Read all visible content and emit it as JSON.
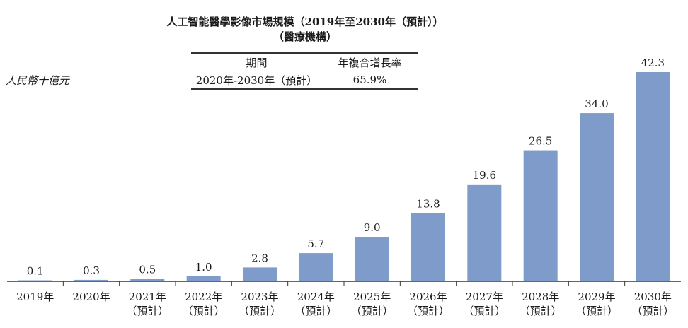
{
  "title": "人工智能醫學影像市場規模（2019年至2030年（預計））",
  "subtitle": "（醫療機構）",
  "unit_label": "人民幣十億元",
  "cagr_table": {
    "headers": [
      "期間",
      "年複合增長率"
    ],
    "rows": [
      [
        "2020年-2030年（預計）",
        "65.9%"
      ]
    ]
  },
  "colors": {
    "bar": "#7f9bc9",
    "axis": "#333333"
  },
  "chart_data": {
    "type": "bar",
    "title": "人工智能醫學影像市場規模（2019年至2030年（預計））",
    "subtitle": "（醫療機構）",
    "ylabel": "人民幣十億元",
    "xlabel": "",
    "categories": [
      "2019年",
      "2020年",
      "2021年\n（預計）",
      "2022年\n（預計）",
      "2023年\n（預計）",
      "2024年\n（預計）",
      "2025年\n（預計）",
      "2026年\n（預計）",
      "2027年\n（預計）",
      "2028年\n（預計）",
      "2029年\n（預計）",
      "2030年\n（預計）"
    ],
    "values": [
      0.1,
      0.3,
      0.5,
      1.0,
      2.8,
      5.7,
      9.0,
      13.8,
      19.6,
      26.5,
      34.0,
      42.3
    ],
    "value_labels": [
      "0.1",
      "0.3",
      "0.5",
      "1.0",
      "2.8",
      "5.7",
      "9.0",
      "13.8",
      "19.6",
      "26.5",
      "34.0",
      "42.3"
    ],
    "ylim": [
      0,
      42.3
    ],
    "grid": false,
    "legend": "none"
  }
}
